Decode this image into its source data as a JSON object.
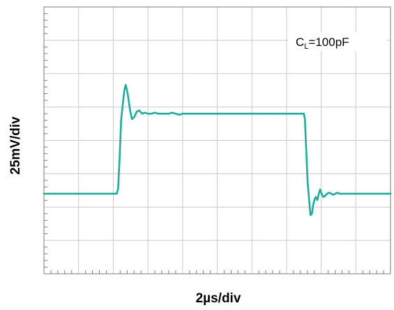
{
  "chart_data": {
    "type": "line",
    "title": "",
    "xlabel": "2µs/div",
    "ylabel": "25mV/div",
    "x_unit": "µs",
    "y_unit": "mV",
    "xlim": [
      0,
      20
    ],
    "ylim": [
      -150,
      100
    ],
    "grid": true,
    "grid_divisions": {
      "x": 10,
      "y": 8
    },
    "minor_ticks_per_division": 5,
    "annotation": {
      "text_main": "C",
      "text_sub": "L",
      "text_rest": "=100pF",
      "placement": "top-right"
    },
    "series": [
      {
        "color": "#1aaf9b",
        "x": [
          0,
          4.2,
          4.28,
          4.36,
          4.46,
          4.56,
          4.64,
          4.72,
          4.84,
          4.96,
          5.08,
          5.22,
          5.36,
          5.5,
          5.66,
          5.82,
          6.0,
          6.2,
          6.4,
          6.6,
          6.8,
          7.0,
          7.2,
          7.4,
          7.6,
          7.8,
          8.0,
          9.0,
          10.0,
          11.0,
          12.0,
          13.0,
          14.0,
          15.0,
          15.06,
          15.14,
          15.22,
          15.3,
          15.38,
          15.46,
          15.54,
          15.62,
          15.7,
          15.78,
          15.86,
          15.94,
          16.02,
          16.12,
          16.22,
          16.34,
          16.46,
          16.58,
          16.7,
          16.82,
          16.94,
          17.06,
          17.2,
          17.4,
          17.6,
          17.8,
          18.0,
          19.0,
          20.0
        ],
        "y": [
          -75,
          -75,
          -70,
          -45,
          -5,
          10,
          22,
          27,
          18,
          4,
          -5,
          -3,
          2,
          3,
          0,
          1,
          0,
          0,
          1,
          0,
          0,
          0,
          0,
          1,
          0,
          -1,
          0,
          0,
          0,
          0,
          0,
          0,
          0,
          0,
          -5,
          -35,
          -65,
          -80,
          -95,
          -94,
          -85,
          -80,
          -78,
          -81,
          -75,
          -71,
          -75,
          -78,
          -77,
          -75,
          -74,
          -75,
          -76,
          -75,
          -74,
          -75,
          -75,
          -75,
          -75,
          -75,
          -75,
          -75,
          -75
        ]
      }
    ]
  }
}
